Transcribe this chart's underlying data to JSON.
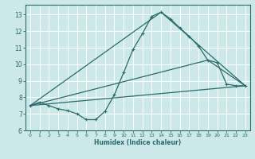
{
  "xlabel": "Humidex (Indice chaleur)",
  "bg_color": "#cce8e8",
  "line_color": "#2a6b6b",
  "grid_color": "#b0d8d8",
  "xlim": [
    -0.5,
    23.5
  ],
  "ylim": [
    6.0,
    13.6
  ],
  "xticks": [
    0,
    1,
    2,
    3,
    4,
    5,
    6,
    7,
    8,
    9,
    10,
    11,
    12,
    13,
    14,
    15,
    16,
    17,
    18,
    19,
    20,
    21,
    22,
    23
  ],
  "yticks": [
    6,
    7,
    8,
    9,
    10,
    11,
    12,
    13
  ],
  "line1_x": [
    0,
    1,
    2,
    3,
    4,
    5,
    6,
    7,
    8,
    9,
    10,
    11,
    12,
    13,
    14,
    15,
    16,
    17,
    18,
    19,
    20,
    21,
    22,
    23
  ],
  "line1_y": [
    7.5,
    7.7,
    7.5,
    7.3,
    7.2,
    7.0,
    6.65,
    6.65,
    7.15,
    8.15,
    9.5,
    10.9,
    11.85,
    12.9,
    13.15,
    12.75,
    12.2,
    11.7,
    11.1,
    10.25,
    10.1,
    8.8,
    8.7,
    8.7
  ],
  "line2_x": [
    0,
    23
  ],
  "line2_y": [
    7.5,
    8.7
  ],
  "line3_x": [
    0,
    14,
    23
  ],
  "line3_y": [
    7.5,
    13.15,
    8.7
  ],
  "line4_x": [
    0,
    19,
    23
  ],
  "line4_y": [
    7.5,
    10.25,
    8.7
  ],
  "figsize": [
    3.2,
    2.0
  ],
  "dpi": 100
}
